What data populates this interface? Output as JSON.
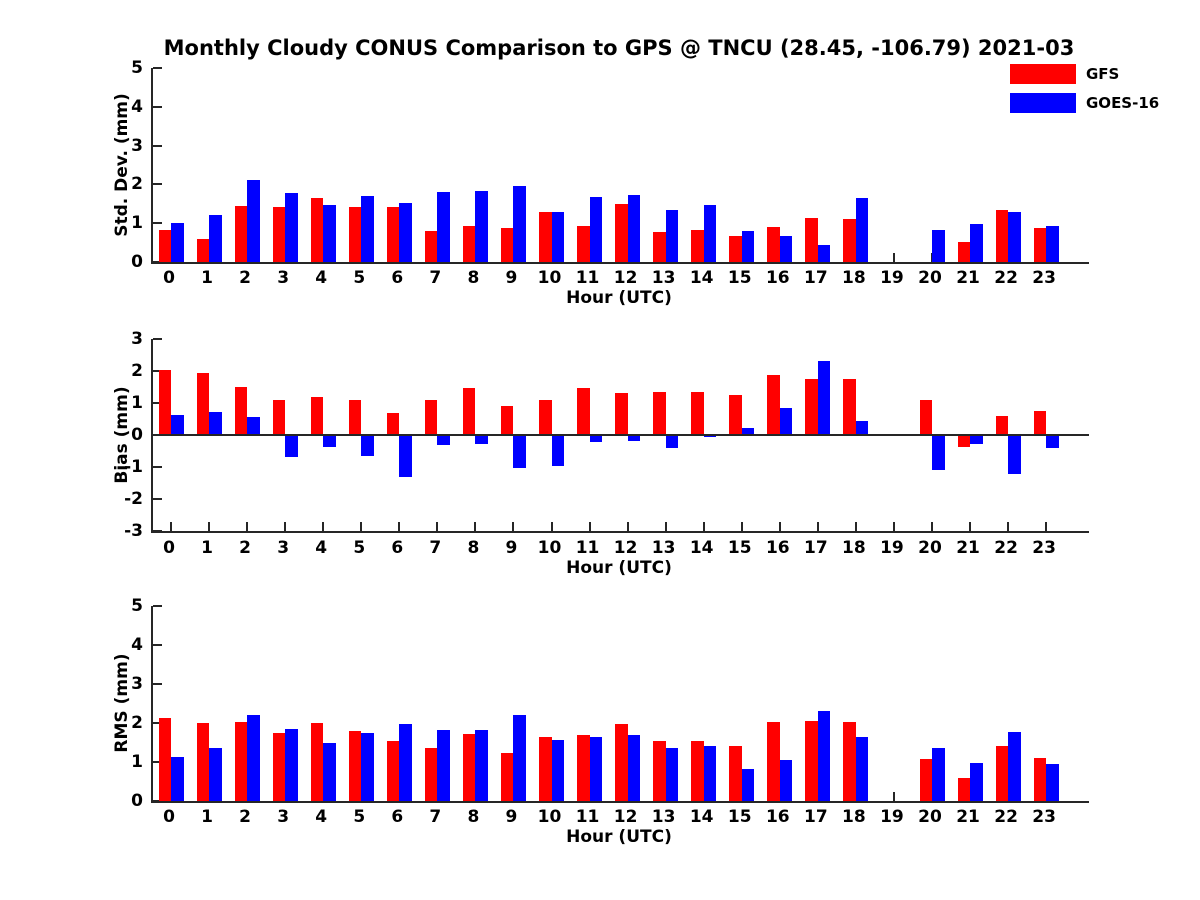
{
  "title": "Monthly Cloudy CONUS Comparison to GPS @ TNCU (28.45, -106.79) 2021-03",
  "xlabel": "Hour (UTC)",
  "colors": {
    "gfs": "#ff0000",
    "goes16": "#0000ff",
    "axis": "#262626"
  },
  "legend": {
    "position": "top-right",
    "items": [
      {
        "label": "GFS",
        "color": "#ff0000"
      },
      {
        "label": "GOES-16",
        "color": "#0000ff"
      }
    ]
  },
  "chart_data": [
    {
      "type": "bar",
      "panel": "std-dev",
      "ylabel": "Std. Dev. (mm)",
      "xlabel": "Hour (UTC)",
      "ylim": [
        0,
        5
      ],
      "yticks": [
        0,
        1,
        2,
        3,
        4,
        5
      ],
      "grid": false,
      "categories": [
        "0",
        "1",
        "2",
        "3",
        "4",
        "5",
        "6",
        "7",
        "8",
        "9",
        "10",
        "11",
        "12",
        "13",
        "14",
        "15",
        "16",
        "17",
        "18",
        "19",
        "20",
        "21",
        "22",
        "23"
      ],
      "series": [
        {
          "name": "GFS",
          "color": "#ff0000",
          "values": [
            0.83,
            0.58,
            1.45,
            1.42,
            1.65,
            1.42,
            1.42,
            0.8,
            0.93,
            0.88,
            1.3,
            0.94,
            1.5,
            0.78,
            0.83,
            0.68,
            0.91,
            1.13,
            1.12,
            null,
            null,
            0.52,
            1.33,
            0.87
          ]
        },
        {
          "name": "GOES-16",
          "color": "#0000ff",
          "values": [
            1.0,
            1.22,
            2.12,
            1.78,
            1.48,
            1.69,
            1.52,
            1.8,
            1.83,
            1.95,
            1.3,
            1.67,
            1.72,
            1.35,
            1.47,
            0.8,
            0.68,
            0.44,
            1.65,
            null,
            0.83,
            0.98,
            1.28,
            0.94
          ]
        }
      ]
    },
    {
      "type": "bar",
      "panel": "bias",
      "ylabel": "Bias (mm)",
      "xlabel": "Hour (UTC)",
      "ylim": [
        -3,
        3
      ],
      "yticks": [
        3,
        2,
        1,
        0,
        -1,
        -2,
        -3
      ],
      "grid": false,
      "categories": [
        "0",
        "1",
        "2",
        "3",
        "4",
        "5",
        "6",
        "7",
        "8",
        "9",
        "10",
        "11",
        "12",
        "13",
        "14",
        "15",
        "16",
        "17",
        "18",
        "19",
        "20",
        "21",
        "22",
        "23"
      ],
      "series": [
        {
          "name": "GFS",
          "color": "#ff0000",
          "values": [
            2.02,
            1.93,
            1.5,
            1.08,
            1.2,
            1.1,
            0.68,
            1.1,
            1.48,
            0.9,
            1.1,
            1.48,
            1.32,
            1.35,
            1.34,
            1.25,
            1.86,
            1.74,
            1.74,
            null,
            1.1,
            -0.38,
            0.6,
            0.75
          ]
        },
        {
          "name": "GOES-16",
          "color": "#0000ff",
          "values": [
            0.62,
            0.71,
            0.57,
            -0.7,
            -0.36,
            -0.65,
            -1.3,
            -0.31,
            -0.28,
            -1.04,
            -0.98,
            -0.21,
            -0.2,
            -0.42,
            -0.05,
            0.23,
            0.85,
            2.31,
            0.44,
            null,
            -1.08,
            -0.27,
            -1.21,
            -0.4
          ]
        }
      ]
    },
    {
      "type": "bar",
      "panel": "rms",
      "ylabel": "RMS (mm)",
      "xlabel": "Hour (UTC)",
      "ylim": [
        0,
        5
      ],
      "yticks": [
        0,
        1,
        2,
        3,
        4,
        5
      ],
      "grid": false,
      "categories": [
        "0",
        "1",
        "2",
        "3",
        "4",
        "5",
        "6",
        "7",
        "8",
        "9",
        "10",
        "11",
        "12",
        "13",
        "14",
        "15",
        "16",
        "17",
        "18",
        "19",
        "20",
        "21",
        "22",
        "23"
      ],
      "series": [
        {
          "name": "GFS",
          "color": "#ff0000",
          "values": [
            2.12,
            2.0,
            2.03,
            1.74,
            2.0,
            1.79,
            1.55,
            1.36,
            1.72,
            1.24,
            1.65,
            1.7,
            1.98,
            1.53,
            1.55,
            1.4,
            2.02,
            2.05,
            2.03,
            null,
            1.07,
            0.59,
            1.42,
            1.11
          ]
        },
        {
          "name": "GOES-16",
          "color": "#0000ff",
          "values": [
            1.12,
            1.36,
            2.2,
            1.85,
            1.49,
            1.74,
            1.97,
            1.81,
            1.83,
            2.2,
            1.57,
            1.63,
            1.7,
            1.36,
            1.4,
            0.83,
            1.05,
            2.31,
            1.65,
            null,
            1.35,
            0.97,
            1.77,
            0.96
          ]
        }
      ]
    }
  ]
}
